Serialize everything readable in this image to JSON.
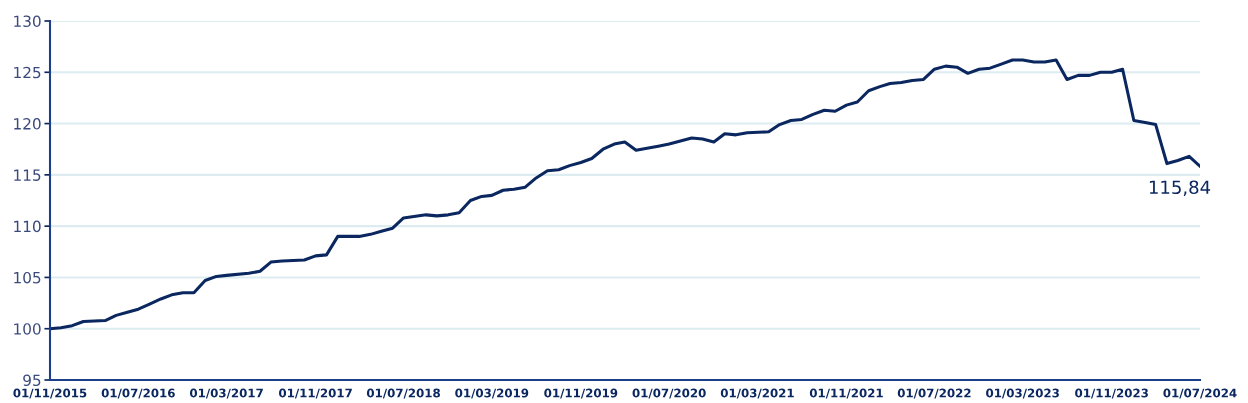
{
  "chart_data": {
    "type": "line",
    "x": [
      "2015-11",
      "2015-12",
      "2016-01",
      "2016-02",
      "2016-04",
      "2016-05",
      "2016-06",
      "2016-07",
      "2016-08",
      "2016-09",
      "2016-10",
      "2016-11",
      "2016-12",
      "2017-01",
      "2017-02",
      "2017-03",
      "2017-05",
      "2017-06",
      "2017-07",
      "2017-08",
      "2017-10",
      "2017-11",
      "2017-12",
      "2018-01",
      "2018-03",
      "2018-04",
      "2018-05",
      "2018-06",
      "2018-07",
      "2018-09",
      "2018-10",
      "2018-11",
      "2018-12",
      "2019-01",
      "2019-02",
      "2019-03",
      "2019-04",
      "2019-05",
      "2019-06",
      "2019-07",
      "2019-08",
      "2019-09",
      "2019-10",
      "2019-11",
      "2019-12",
      "2020-01",
      "2020-02",
      "2020-03",
      "2020-04",
      "2020-05",
      "2020-06",
      "2020-07",
      "2020-08",
      "2020-09",
      "2020-10",
      "2020-11",
      "2020-12",
      "2021-01",
      "2021-02",
      "2021-04",
      "2021-05",
      "2021-06",
      "2021-07",
      "2021-08",
      "2021-09",
      "2021-10",
      "2021-11",
      "2021-12",
      "2022-01",
      "2022-02",
      "2022-03",
      "2022-04",
      "2022-05",
      "2022-06",
      "2022-07",
      "2022-08",
      "2022-09",
      "2022-10",
      "2022-11",
      "2022-12",
      "2023-01",
      "2023-02",
      "2023-03",
      "2023-04",
      "2023-05",
      "2023-06",
      "2023-07",
      "2023-08",
      "2023-09",
      "2023-10",
      "2023-11",
      "2023-12",
      "2024-01",
      "2024-02",
      "2024-03",
      "2024-04",
      "2024-05",
      "2024-06",
      "2024-07"
    ],
    "series": [
      {
        "color": "#0b2760",
        "values": [
          100.0,
          100.1,
          100.3,
          100.7,
          100.8,
          101.3,
          101.6,
          101.9,
          102.4,
          102.9,
          103.3,
          103.5,
          103.5,
          104.7,
          105.1,
          105.2,
          105.4,
          105.6,
          106.5,
          106.6,
          106.7,
          107.1,
          107.2,
          109.0,
          109.0,
          109.2,
          109.5,
          109.8,
          110.8,
          111.1,
          111.0,
          111.1,
          111.3,
          112.5,
          112.9,
          113.0,
          113.5,
          113.6,
          113.8,
          114.7,
          115.4,
          115.5,
          115.9,
          116.2,
          116.6,
          117.5,
          118.0,
          118.2,
          117.4,
          117.6,
          117.8,
          118.0,
          118.3,
          118.6,
          118.5,
          118.2,
          119.0,
          118.9,
          119.1,
          119.2,
          119.9,
          120.3,
          120.4,
          120.9,
          121.3,
          121.2,
          121.8,
          122.1,
          123.2,
          123.6,
          123.9,
          124.0,
          124.2,
          124.3,
          125.3,
          125.6,
          125.5,
          124.9,
          125.3,
          125.4,
          125.8,
          126.2,
          126.2,
          126.0,
          126.0,
          126.2,
          124.3,
          124.7,
          124.7,
          125.0,
          125.0,
          125.3,
          120.3,
          120.1,
          119.9,
          116.1,
          116.4,
          116.8,
          115.84
        ]
      }
    ],
    "xlim": [
      "2015-11-01",
      "2024-07-01"
    ],
    "xticks": [
      {
        "value": "2015-11-01",
        "label": "01/11/2015"
      },
      {
        "value": "2016-07-01",
        "label": "01/07/2016"
      },
      {
        "value": "2017-03-01",
        "label": "01/03/2017"
      },
      {
        "value": "2017-11-01",
        "label": "01/11/2017"
      },
      {
        "value": "2018-07-01",
        "label": "01/07/2018"
      },
      {
        "value": "2019-03-01",
        "label": "01/03/2019"
      },
      {
        "value": "2019-11-01",
        "label": "01/11/2019"
      },
      {
        "value": "2020-07-01",
        "label": "01/07/2020"
      },
      {
        "value": "2021-03-01",
        "label": "01/03/2021"
      },
      {
        "value": "2021-11-01",
        "label": "01/11/2021"
      },
      {
        "value": "2022-07-01",
        "label": "01/07/2022"
      },
      {
        "value": "2023-03-01",
        "label": "01/03/2023"
      },
      {
        "value": "2023-11-01",
        "label": "01/11/2023"
      },
      {
        "value": "2024-07-01",
        "label": "01/07/2024"
      }
    ],
    "ylim": [
      95,
      130
    ],
    "yticks": [
      95,
      100,
      105,
      110,
      115,
      120,
      125,
      130
    ],
    "grid": "y",
    "marker": "none",
    "line_style": "solid",
    "legend": false,
    "annotations": [
      {
        "text": "115,84",
        "x": "2024-07",
        "y": 115.84
      }
    ]
  }
}
